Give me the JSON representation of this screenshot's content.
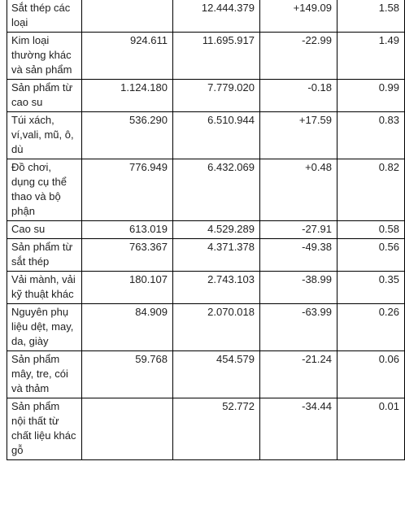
{
  "table": {
    "rows": [
      {
        "name": "Sắt thép các loại",
        "c1": "",
        "c2": "12.444.379",
        "c3": "+149.09",
        "c4": "1.58"
      },
      {
        "name": "Kim loại thường khác và sản phẩm",
        "c1": "924.611",
        "c2": "11.695.917",
        "c3": "-22.99",
        "c4": "1.49"
      },
      {
        "name": "Sản phẩm từ cao su",
        "c1": "1.124.180",
        "c2": "7.779.020",
        "c3": "-0.18",
        "c4": "0.99"
      },
      {
        "name": "Túi xách, ví,vali, mũ, ô, dù",
        "c1": "536.290",
        "c2": "6.510.944",
        "c3": "+17.59",
        "c4": "0.83"
      },
      {
        "name": "Đồ chơi, dụng cụ thể thao và bộ phận",
        "c1": "776.949",
        "c2": "6.432.069",
        "c3": "+0.48",
        "c4": "0.82"
      },
      {
        "name": "Cao su",
        "c1": "613.019",
        "c2": "4.529.289",
        "c3": "-27.91",
        "c4": "0.58"
      },
      {
        "name": "Sản phẩm từ sắt thép",
        "c1": "763.367",
        "c2": "4.371.378",
        "c3": "-49.38",
        "c4": "0.56"
      },
      {
        "name": "Vải mành, vải kỹ thuật khác",
        "c1": "180.107",
        "c2": "2.743.103",
        "c3": "-38.99",
        "c4": "0.35"
      },
      {
        "name": "Nguyên phụ liệu dệt, may, da, giày",
        "c1": "84.909",
        "c2": "2.070.018",
        "c3": "-63.99",
        "c4": "0.26"
      },
      {
        "name": "Sản phẩm mây, tre, cói và thảm",
        "c1": "59.768",
        "c2": "454.579",
        "c3": "-21.24",
        "c4": "0.06"
      },
      {
        "name": "Sản phẩm nội thất từ chất liệu khác gỗ",
        "c1": "",
        "c2": "52.772",
        "c3": "-34.44",
        "c4": "0.01"
      }
    ]
  }
}
